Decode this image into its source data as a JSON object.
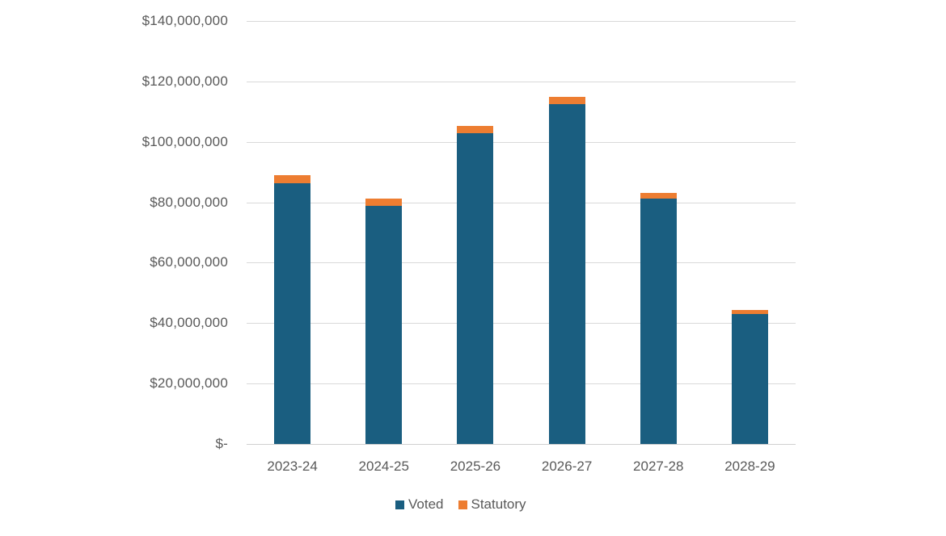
{
  "chart_data": {
    "type": "bar",
    "stacked": true,
    "title": "",
    "xlabel": "",
    "ylabel": "",
    "categories": [
      "2023-24",
      "2024-25",
      "2025-26",
      "2026-27",
      "2027-28",
      "2028-29"
    ],
    "series": [
      {
        "name": "Voted",
        "color": "#1a5e80",
        "values": [
          86300000,
          78900000,
          102900000,
          112500000,
          81200000,
          43000000
        ]
      },
      {
        "name": "Statutory",
        "color": "#ed7d31",
        "values": [
          2600000,
          2400000,
          2300000,
          2300000,
          1900000,
          1400000
        ]
      }
    ],
    "totals": [
      88900000,
      81300000,
      105200000,
      114800000,
      83100000,
      44400000
    ],
    "ylim": [
      0,
      140000000
    ],
    "yticks": [
      0,
      20000000,
      40000000,
      60000000,
      80000000,
      100000000,
      120000000,
      140000000
    ],
    "ytick_labels": [
      "$-",
      "$20,000,000",
      "$40,000,000",
      "$60,000,000",
      "$80,000,000",
      "$100,000,000",
      "$120,000,000",
      "$140,000,000"
    ],
    "grid": true,
    "legend_position": "bottom"
  },
  "legend": {
    "items": [
      {
        "label": "Voted",
        "color": "#1a5e80"
      },
      {
        "label": "Statutory",
        "color": "#ed7d31"
      }
    ]
  }
}
